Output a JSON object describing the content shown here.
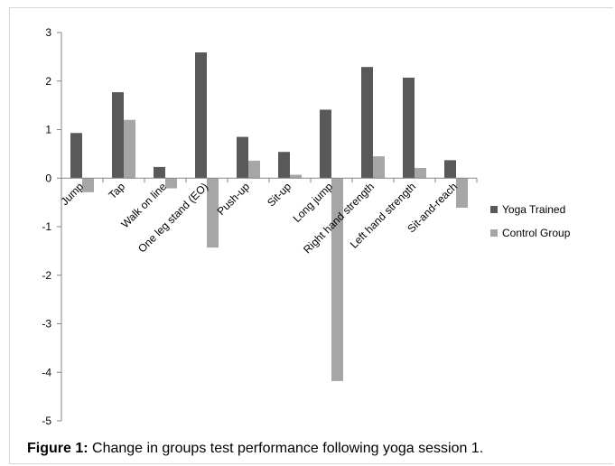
{
  "caption": {
    "label": "Figure 1:",
    "text": "Change in groups test performance following yoga session 1."
  },
  "chart_data": {
    "type": "bar",
    "categories": [
      "Jump",
      "Tap",
      "Walk on line",
      "One leg stand (EO)",
      "Push-up",
      "Sit-up",
      "Long jump",
      "Right hand strength",
      "Left hand strength",
      "Sit-and-reach"
    ],
    "series": [
      {
        "name": "Yoga Trained",
        "color": "#595959",
        "values": [
          0.93,
          1.77,
          0.23,
          2.59,
          0.85,
          0.54,
          1.41,
          2.29,
          2.07,
          0.37
        ]
      },
      {
        "name": "Control Group",
        "color": "#a6a6a6",
        "values": [
          -0.29,
          1.2,
          -0.21,
          -1.43,
          0.36,
          0.07,
          -4.18,
          0.45,
          0.21,
          -0.61
        ]
      }
    ],
    "ylim": [
      -5,
      3
    ],
    "yticks": [
      3,
      2,
      1,
      0,
      -1,
      -2,
      -3,
      -4,
      -5
    ],
    "title": "",
    "xlabel": "",
    "ylabel": "",
    "legend_position": "right",
    "grid": false
  }
}
